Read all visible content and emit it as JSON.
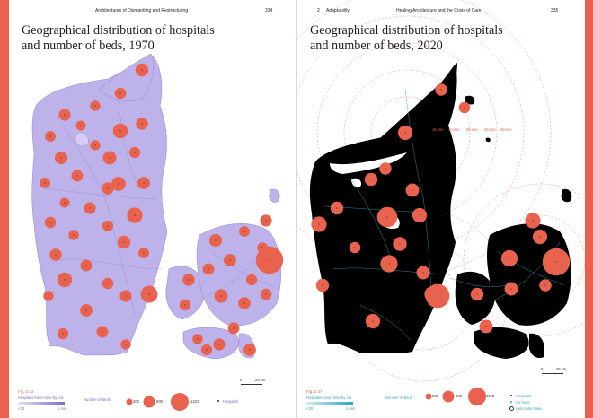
{
  "colors": {
    "spread_border": "#e8624e",
    "hospital": "#e8624e",
    "land_1970": "#bdb2ea",
    "land_2020": "#000000",
    "roads_2020": "#2aa6bd",
    "travel_rings": "#e8624e"
  },
  "left": {
    "header_left": "Architectures of Dismantling and Restructuring",
    "page_number": "334",
    "title_line1": "Geographical distribution of hospitals",
    "title_line2": "and number of beds, 1970",
    "figure_number": "Fig. 2.42",
    "legend": {
      "travel_label": "Hospitals travel time by car",
      "travel_min": "<30",
      "travel_max": "1 min",
      "beds_label": "Number of beds",
      "beds_values": [
        "200",
        "600",
        "1223"
      ],
      "hospitals_label": "Hospitals"
    },
    "scale_zero": "0",
    "scale_label": "25 km"
  },
  "right": {
    "header_chapter": "2",
    "header_section": "Adaptability",
    "header_book": "Healing Architecture and the Crisis of Care",
    "page_number": "335",
    "title_line1": "Geographical distribution of hospitals",
    "title_line2": "and number of beds, 2020",
    "figure_number": "Fig. 2.47",
    "ring_labels": [
      "15 min",
      "10 min",
      "20 min",
      "25 min",
      "30 min"
    ],
    "legend": {
      "travel_label": "Hospitals travel time by car",
      "travel_min": "<30",
      "travel_max": "1 min",
      "beds_label": "Number of beds",
      "beds_values": [
        "200",
        "600",
        "1223"
      ],
      "hospitals_label": "Hospitals",
      "no_beds_label": "No beds",
      "helicopter_label": "Helicopter Base"
    },
    "scale_zero": "0",
    "scale_label": "25 km"
  },
  "map_data": {
    "hospitals_1970_beds": [
      180,
      120,
      90,
      260,
      150,
      140,
      100,
      80,
      200,
      110,
      170,
      90,
      130,
      230,
      160,
      100,
      80,
      140,
      120,
      300,
      110,
      90,
      180,
      150,
      130,
      100,
      250,
      120,
      140,
      90,
      160,
      110,
      380,
      130,
      90,
      150,
      120,
      170,
      100,
      140,
      90,
      160,
      130,
      110,
      200,
      150,
      120,
      90,
      140,
      1223,
      160,
      110,
      130,
      150
    ],
    "hospitals_2020_beds": [
      150,
      250,
      120,
      200,
      180,
      300,
      600,
      250,
      150,
      220,
      180,
      400,
      200,
      300,
      250,
      900,
      180,
      200,
      350,
      1223,
      250,
      300,
      150,
      200,
      180,
      120
    ]
  }
}
